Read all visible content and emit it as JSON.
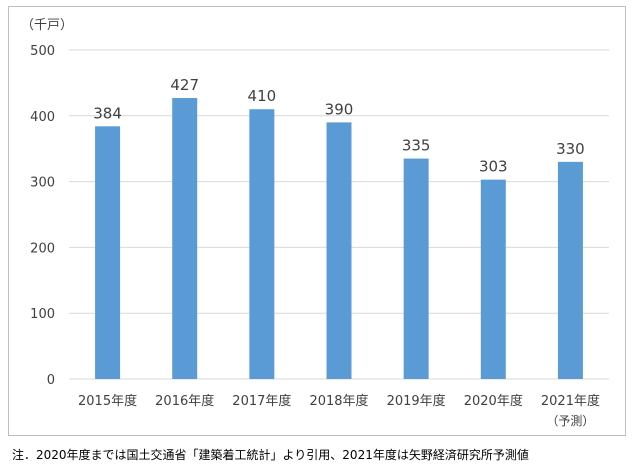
{
  "chart_data": {
    "type": "bar",
    "unit_label": "（千戸）",
    "categories": [
      "2015年度",
      "2016年度",
      "2017年度",
      "2018年度",
      "2019年度",
      "2020年度",
      "2021年度"
    ],
    "category_notes": [
      "",
      "",
      "",
      "",
      "",
      "",
      "（予測）"
    ],
    "values": [
      384,
      427,
      410,
      390,
      335,
      303,
      330
    ],
    "ylim": [
      0,
      500
    ],
    "yticks": [
      0,
      100,
      200,
      300,
      400,
      500
    ],
    "grid": true,
    "bar_color": "#5b9bd5",
    "grid_color": "#d9d9d9"
  },
  "footnote": "注．2020年度までは国土交通省「建築着工統計」より引用、2021年度は矢野経済研究所予測値"
}
